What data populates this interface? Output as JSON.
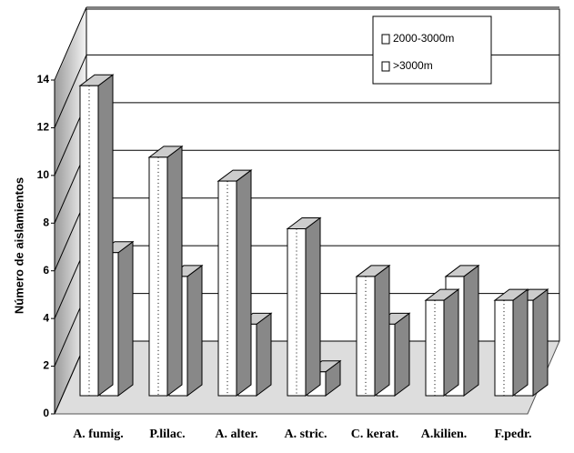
{
  "chart_data": {
    "type": "bar3d",
    "y_label": "Número de aislamientos",
    "categories": [
      "A. fumig.",
      "P.lilac.",
      "A. alter.",
      "A. stric.",
      "C. kerat.",
      "A.kilien.",
      "F.pedr."
    ],
    "series": [
      {
        "name": "2000-3000m",
        "color": "#ffffff",
        "values": [
          13,
          10,
          9,
          7,
          5,
          4,
          4
        ]
      },
      {
        "name": ">3000m",
        "color": "#ffffff",
        "values": [
          6,
          5,
          3,
          1,
          3,
          5,
          4
        ]
      }
    ],
    "ylim": [
      0,
      14
    ],
    "yticks": [
      0,
      2,
      4,
      6,
      8,
      10,
      12,
      14
    ],
    "grid": true
  }
}
